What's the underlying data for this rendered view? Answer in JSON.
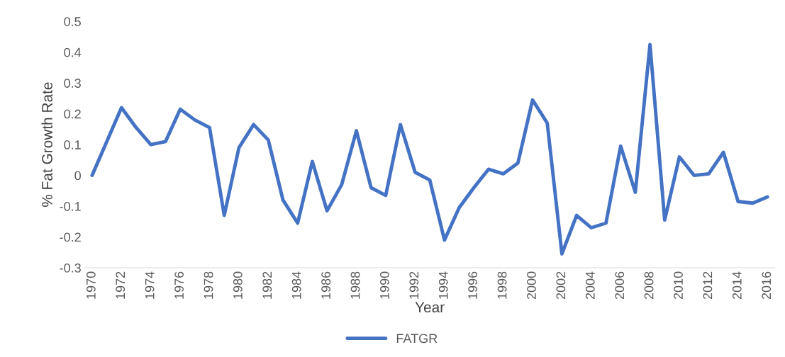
{
  "chart_data": {
    "type": "line",
    "xlabel": "Year",
    "ylabel": "% Fat Growth Rate",
    "categories": [
      "1970",
      null,
      "1972",
      null,
      "1974",
      null,
      "1976",
      null,
      "1978",
      null,
      "1980",
      null,
      "1982",
      null,
      "1984",
      null,
      "1986",
      null,
      "1988",
      null,
      "1990",
      null,
      "1992",
      null,
      "1994",
      null,
      "1996",
      null,
      "1998",
      null,
      "2000",
      null,
      "2002",
      null,
      "2004",
      null,
      "2006",
      null,
      "2008",
      null,
      "2010",
      null,
      "2012",
      null,
      "2014",
      null,
      "2016"
    ],
    "series": [
      {
        "name": "FATGR",
        "color": "#4472c4",
        "values": [
          0,
          0.11,
          0.22,
          0.155,
          0.1,
          0.11,
          0.215,
          0.18,
          0.155,
          -0.13,
          0.09,
          0.165,
          0.115,
          -0.08,
          -0.155,
          0.045,
          -0.115,
          -0.03,
          0.145,
          -0.04,
          -0.065,
          0.165,
          0.01,
          -0.015,
          -0.21,
          -0.105,
          -0.04,
          0.02,
          0.005,
          0.04,
          0.245,
          0.17,
          -0.255,
          -0.13,
          -0.17,
          -0.155,
          0.095,
          -0.055,
          0.425,
          -0.145,
          0.06,
          0,
          0.005,
          0.075,
          -0.085,
          -0.09,
          -0.07
        ]
      }
    ],
    "ylim": [
      -0.3,
      0.5
    ],
    "yticks": [
      -0.3,
      -0.2,
      -0.1,
      0,
      0.1,
      0.2,
      0.3,
      0.4,
      0.5
    ],
    "grid": false,
    "legend": "bottom",
    "marker": "none",
    "line_style": "solid"
  }
}
